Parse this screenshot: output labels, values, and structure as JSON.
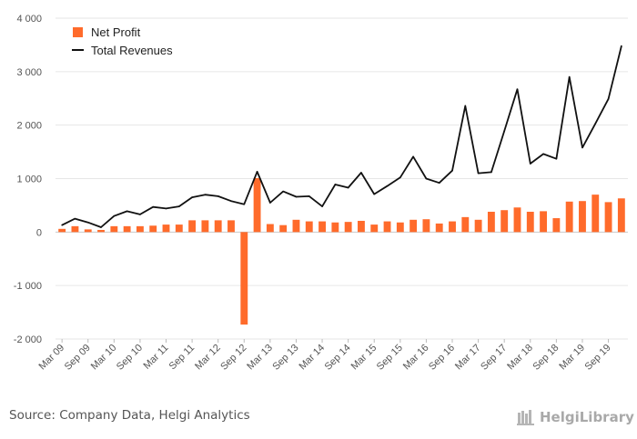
{
  "chart_data": {
    "type": "bar",
    "ylim": [
      -2000,
      4000
    ],
    "yticks": [
      -2000,
      -1000,
      0,
      1000,
      2000,
      3000,
      4000
    ],
    "ytick_labels": [
      "-2 000",
      "-1 000",
      "0",
      "1 000",
      "2 000",
      "3 000",
      "4 000"
    ],
    "grid": true,
    "legend_position": "top-left",
    "categories": [
      "Mar 09",
      "Jun 09",
      "Sep 09",
      "Dec 09",
      "Mar 10",
      "Jun 10",
      "Sep 10",
      "Dec 10",
      "Mar 11",
      "Jun 11",
      "Sep 11",
      "Dec 11",
      "Mar 12",
      "Jun 12",
      "Sep 12",
      "Dec 12",
      "Mar 13",
      "Jun 13",
      "Sep 13",
      "Dec 13",
      "Mar 14",
      "Jun 14",
      "Sep 14",
      "Dec 14",
      "Mar 15",
      "Jun 15",
      "Sep 15",
      "Dec 15",
      "Mar 16",
      "Jun 16",
      "Sep 16",
      "Dec 16",
      "Mar 17",
      "Jun 17",
      "Sep 17",
      "Dec 17",
      "Mar 18",
      "Jun 18",
      "Sep 18",
      "Dec 18",
      "Mar 19",
      "Jun 19",
      "Sep 19",
      "Dec 19"
    ],
    "xtick_labels": [
      "Mar 09",
      "Sep 09",
      "Mar 10",
      "Sep 10",
      "Mar 11",
      "Sep 11",
      "Mar 12",
      "Sep 12",
      "Mar 13",
      "Sep 13",
      "Mar 14",
      "Sep 14",
      "Mar 15",
      "Sep 15",
      "Mar 16",
      "Sep 16",
      "Mar 17",
      "Sep 17",
      "Mar 18",
      "Sep 18",
      "Mar 19",
      "Sep 19"
    ],
    "series": [
      {
        "name": "Net Profit",
        "kind": "bar",
        "color": "#ff6b2b",
        "values": [
          60,
          110,
          50,
          40,
          110,
          110,
          110,
          120,
          140,
          140,
          220,
          220,
          220,
          220,
          -1730,
          1010,
          150,
          130,
          230,
          200,
          200,
          180,
          190,
          210,
          140,
          200,
          180,
          230,
          240,
          160,
          200,
          280,
          230,
          380,
          410,
          460,
          380,
          390,
          260,
          570,
          580,
          700,
          560,
          630
        ]
      },
      {
        "name": "Total Revenues",
        "kind": "line",
        "color": "#111111",
        "values": [
          130,
          250,
          180,
          90,
          300,
          390,
          330,
          470,
          440,
          480,
          650,
          700,
          670,
          580,
          520,
          1130,
          550,
          760,
          660,
          670,
          480,
          890,
          830,
          1110,
          710,
          860,
          1020,
          1410,
          1000,
          920,
          1150,
          2360,
          1100,
          1120,
          1890,
          2670,
          1280,
          1460,
          1370,
          2900,
          1580,
          2030,
          2490,
          3480
        ]
      }
    ]
  },
  "footer": {
    "source": "Source: Company Data, Helgi Analytics",
    "brand": "HelgiLibrary"
  }
}
